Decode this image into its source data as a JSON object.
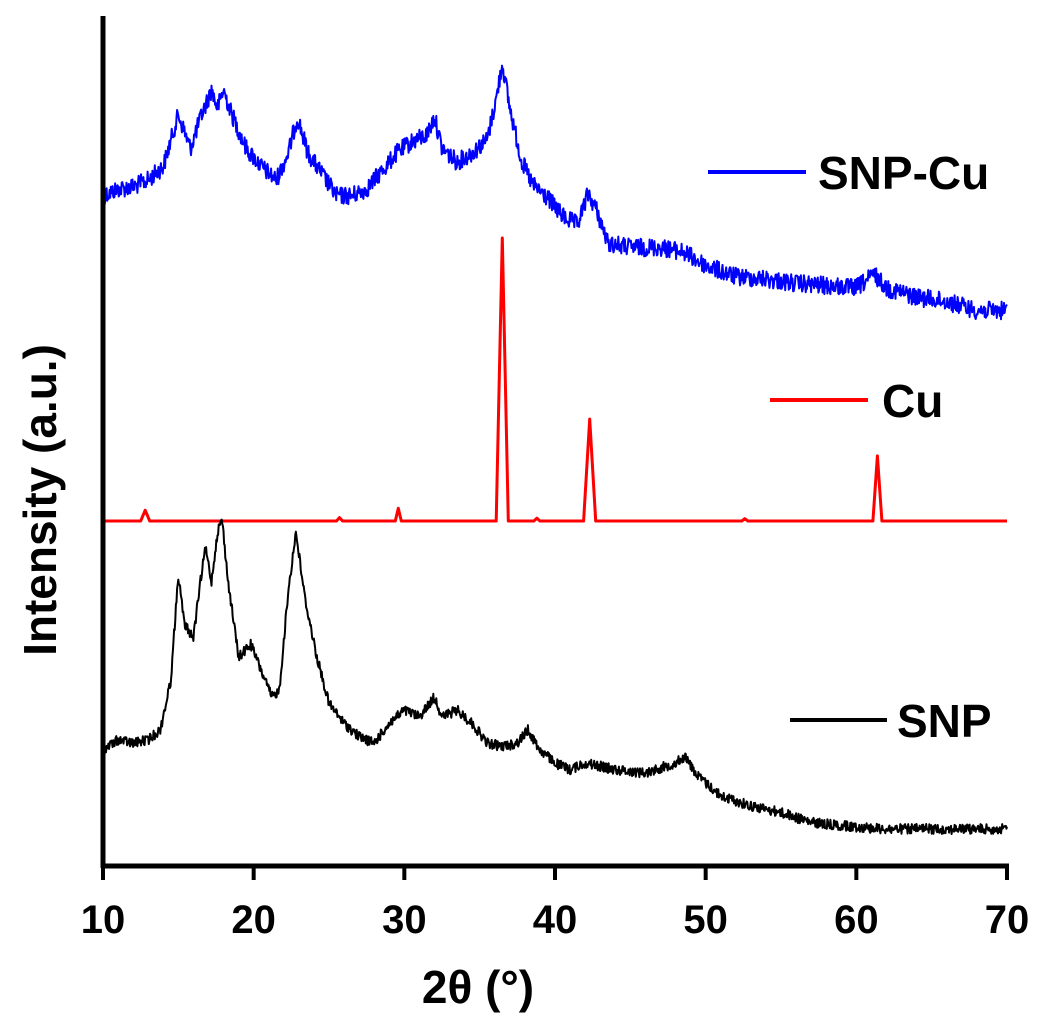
{
  "chart_data": {
    "type": "line",
    "title": "",
    "xlabel": "2θ (°)",
    "ylabel": "Intensity (a.u.)",
    "xlim": [
      10,
      70
    ],
    "xticks": [
      "10",
      "20",
      "30",
      "40",
      "50",
      "60",
      "70"
    ],
    "grid": false,
    "legend_placement": "inline-right",
    "series": [
      {
        "name": "SNP-Cu",
        "color": "#0000ff",
        "points": [
          [
            10,
            0.53
          ],
          [
            11,
            0.56
          ],
          [
            12,
            0.57
          ],
          [
            13,
            0.6
          ],
          [
            14,
            0.66
          ],
          [
            15,
            0.89
          ],
          [
            15.8,
            0.74
          ],
          [
            16.5,
            0.88
          ],
          [
            17.2,
            1.0
          ],
          [
            17.6,
            0.92
          ],
          [
            18.0,
            1.0
          ],
          [
            18.5,
            0.9
          ],
          [
            19.5,
            0.74
          ],
          [
            20.5,
            0.66
          ],
          [
            21.5,
            0.6
          ],
          [
            22.3,
            0.72
          ],
          [
            22.9,
            0.88
          ],
          [
            23.6,
            0.72
          ],
          [
            24.5,
            0.63
          ],
          [
            25.5,
            0.53
          ],
          [
            26.5,
            0.53
          ],
          [
            27.5,
            0.56
          ],
          [
            28.5,
            0.64
          ],
          [
            29.5,
            0.72
          ],
          [
            30.5,
            0.77
          ],
          [
            31.5,
            0.8
          ],
          [
            32.0,
            0.88
          ],
          [
            32.5,
            0.74
          ],
          [
            33.5,
            0.68
          ],
          [
            34.5,
            0.72
          ],
          [
            35.5,
            0.78
          ],
          [
            36.1,
            0.96
          ],
          [
            36.5,
            1.12
          ],
          [
            37.0,
            0.92
          ],
          [
            37.8,
            0.68
          ],
          [
            38.5,
            0.58
          ],
          [
            39.5,
            0.52
          ],
          [
            40.5,
            0.44
          ],
          [
            41.5,
            0.4
          ],
          [
            42.2,
            0.54
          ],
          [
            42.8,
            0.46
          ],
          [
            43.5,
            0.32
          ],
          [
            45,
            0.3
          ],
          [
            47,
            0.3
          ],
          [
            48.5,
            0.28
          ],
          [
            50,
            0.22
          ],
          [
            52,
            0.17
          ],
          [
            54,
            0.16
          ],
          [
            56,
            0.14
          ],
          [
            58,
            0.13
          ],
          [
            60,
            0.12
          ],
          [
            61.2,
            0.18
          ],
          [
            62,
            0.12
          ],
          [
            64,
            0.08
          ],
          [
            66,
            0.06
          ],
          [
            68,
            0.02
          ],
          [
            70,
            0.02
          ]
        ]
      },
      {
        "name": "Cu",
        "color": "#ff0000",
        "points": [
          [
            10,
            0.0
          ],
          [
            12.5,
            0.0
          ],
          [
            12.8,
            0.038
          ],
          [
            13.1,
            0.0
          ],
          [
            25.5,
            0.0
          ],
          [
            25.7,
            0.012
          ],
          [
            25.9,
            0.0
          ],
          [
            29.4,
            0.0
          ],
          [
            29.6,
            0.045
          ],
          [
            29.8,
            0.0
          ],
          [
            36.1,
            0.0
          ],
          [
            36.5,
            1.0
          ],
          [
            36.9,
            0.0
          ],
          [
            38.6,
            0.0
          ],
          [
            38.8,
            0.01
          ],
          [
            39.0,
            0.0
          ],
          [
            41.9,
            0.0
          ],
          [
            42.3,
            0.36
          ],
          [
            42.7,
            0.0
          ],
          [
            52.4,
            0.0
          ],
          [
            52.6,
            0.008
          ],
          [
            52.8,
            0.0
          ],
          [
            61.1,
            0.0
          ],
          [
            61.4,
            0.23
          ],
          [
            61.7,
            0.0
          ],
          [
            70,
            0.0
          ]
        ]
      },
      {
        "name": "SNP",
        "color": "#000000",
        "points": [
          [
            10,
            0.14
          ],
          [
            11,
            0.17
          ],
          [
            12,
            0.16
          ],
          [
            13,
            0.17
          ],
          [
            13.8,
            0.2
          ],
          [
            14.5,
            0.35
          ],
          [
            15.0,
            0.67
          ],
          [
            15.4,
            0.52
          ],
          [
            16.0,
            0.48
          ],
          [
            16.5,
            0.66
          ],
          [
            16.8,
            0.75
          ],
          [
            17.2,
            0.65
          ],
          [
            17.6,
            0.8
          ],
          [
            17.9,
            0.84
          ],
          [
            18.3,
            0.65
          ],
          [
            19.0,
            0.42
          ],
          [
            19.8,
            0.46
          ],
          [
            20.5,
            0.38
          ],
          [
            21.2,
            0.3
          ],
          [
            21.7,
            0.32
          ],
          [
            22.3,
            0.62
          ],
          [
            22.8,
            0.8
          ],
          [
            23.4,
            0.6
          ],
          [
            24.2,
            0.42
          ],
          [
            25.0,
            0.28
          ],
          [
            26.0,
            0.22
          ],
          [
            27.0,
            0.18
          ],
          [
            28.0,
            0.16
          ],
          [
            29.0,
            0.22
          ],
          [
            30.0,
            0.26
          ],
          [
            31.0,
            0.24
          ],
          [
            32.0,
            0.3
          ],
          [
            32.5,
            0.24
          ],
          [
            33.5,
            0.26
          ],
          [
            34.5,
            0.22
          ],
          [
            35.5,
            0.16
          ],
          [
            36.5,
            0.15
          ],
          [
            37.5,
            0.16
          ],
          [
            38.2,
            0.2
          ],
          [
            39.0,
            0.14
          ],
          [
            40.0,
            0.1
          ],
          [
            41.0,
            0.08
          ],
          [
            42.0,
            0.1
          ],
          [
            44,
            0.08
          ],
          [
            46,
            0.07
          ],
          [
            48,
            0.1
          ],
          [
            48.6,
            0.12
          ],
          [
            49.5,
            0.06
          ],
          [
            51,
            0.0
          ],
          [
            53,
            -0.03
          ],
          [
            55,
            -0.05
          ],
          [
            57,
            -0.08
          ],
          [
            59,
            -0.09
          ],
          [
            62,
            -0.1
          ],
          [
            66,
            -0.1
          ],
          [
            70,
            -0.1
          ]
        ]
      }
    ]
  }
}
